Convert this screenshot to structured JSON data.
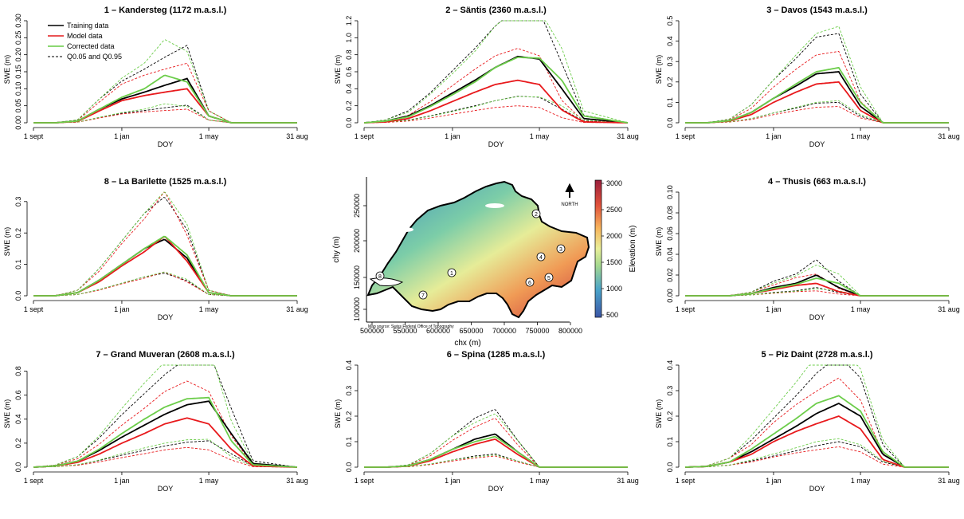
{
  "legend": {
    "entries": [
      {
        "label": "Training data",
        "color": "#000000",
        "style": "solid"
      },
      {
        "label": "Model data",
        "color": "#e31a1c",
        "style": "solid"
      },
      {
        "label": "Corrected data",
        "color": "#66cc44",
        "style": "solid"
      },
      {
        "label": "Q0.05 and Q0.95",
        "color": "#000000",
        "style": "dashed"
      }
    ]
  },
  "colors": {
    "training": "#000000",
    "model": "#e8191c",
    "corrected": "#6ccd4a"
  },
  "map": {
    "ylabel": "chy (m)",
    "xlabel": "chx (m)",
    "xticks": [
      "500000",
      "550000",
      "600000",
      "650000",
      "700000",
      "750000",
      "800000"
    ],
    "yticks": [
      "100000",
      "150000",
      "200000",
      "250000"
    ],
    "colorbar_label": "Elevation (m)",
    "colorbar_ticks": [
      "3000",
      "2500",
      "2000",
      "1500",
      "1000",
      "500"
    ],
    "north_label": "NORTH",
    "source_note": "Map source: Swiss Federal Office of Topography",
    "station_markers": [
      "1",
      "2",
      "3",
      "4",
      "5",
      "6",
      "7",
      "8"
    ]
  },
  "chart_data": [
    {
      "type": "line",
      "title": "1 – Kandersteg (1172 m.a.s.l.)",
      "xlabel": "DOY",
      "ylabel": "SWE (m)",
      "x_tick_labels": [
        "1 sept",
        "1 jan",
        "1 may",
        "31 aug"
      ],
      "y_ticks": [
        "0.00",
        "0.05",
        "0.10",
        "0.15",
        "0.20",
        "0.25",
        "0.30"
      ],
      "ylim": [
        0,
        0.3
      ],
      "show_legend": true,
      "series": [
        {
          "name": "Training data",
          "key": "training",
          "x": [
            "1 sept",
            "1 oct",
            "1 nov",
            "1 dec",
            "1 jan",
            "1 feb",
            "1 mar",
            "1 apr",
            "1 may",
            "1 jun",
            "1 jul",
            "31 aug"
          ],
          "values": [
            0,
            0,
            0.005,
            0.04,
            0.07,
            0.09,
            0.11,
            0.13,
            0.02,
            0,
            0,
            0
          ]
        },
        {
          "name": "Model data",
          "key": "model",
          "x": [
            "1 sept",
            "1 oct",
            "1 nov",
            "1 dec",
            "1 jan",
            "1 feb",
            "1 mar",
            "1 apr",
            "1 may",
            "1 jun",
            "1 jul",
            "31 aug"
          ],
          "values": [
            0,
            0,
            0.004,
            0.035,
            0.065,
            0.08,
            0.09,
            0.1,
            0.02,
            0,
            0,
            0
          ]
        },
        {
          "name": "Corrected data",
          "key": "corrected",
          "x": [
            "1 sept",
            "1 oct",
            "1 nov",
            "1 dec",
            "1 jan",
            "1 feb",
            "1 mar",
            "1 apr",
            "1 may",
            "1 jun",
            "1 jul",
            "31 aug"
          ],
          "values": [
            0,
            0,
            0.005,
            0.04,
            0.075,
            0.1,
            0.14,
            0.12,
            0.02,
            0,
            0,
            0
          ]
        }
      ]
    },
    {
      "type": "line",
      "title": "2 – Säntis (2360 m.a.s.l.)",
      "xlabel": "DOY",
      "ylabel": "SWE (m)",
      "x_tick_labels": [
        "1 sept",
        "1 jan",
        "1 may",
        "31 aug"
      ],
      "y_ticks": [
        "0.0",
        "0.2",
        "0.4",
        "0.6",
        "0.8",
        "1.0",
        "1.2"
      ],
      "ylim": [
        0,
        1.2
      ],
      "show_legend": false,
      "series": [
        {
          "name": "Training data",
          "key": "training",
          "x": [
            "1 sept",
            "1 oct",
            "1 nov",
            "1 dec",
            "1 jan",
            "1 feb",
            "1 mar",
            "1 apr",
            "1 may",
            "1 jun",
            "1 jul",
            "31 aug"
          ],
          "values": [
            0,
            0.02,
            0.08,
            0.2,
            0.35,
            0.5,
            0.65,
            0.78,
            0.75,
            0.4,
            0.05,
            0
          ]
        },
        {
          "name": "Model data",
          "key": "model",
          "x": [
            "1 sept",
            "1 oct",
            "1 nov",
            "1 dec",
            "1 jan",
            "1 feb",
            "1 mar",
            "1 apr",
            "1 may",
            "1 jun",
            "1 jul",
            "31 aug"
          ],
          "values": [
            0,
            0.01,
            0.05,
            0.14,
            0.25,
            0.36,
            0.45,
            0.5,
            0.45,
            0.15,
            0.01,
            0
          ]
        },
        {
          "name": "Corrected data",
          "key": "corrected",
          "x": [
            "1 sept",
            "1 oct",
            "1 nov",
            "1 dec",
            "1 jan",
            "1 feb",
            "1 mar",
            "1 apr",
            "1 may",
            "1 jun",
            "1 jul",
            "31 aug"
          ],
          "values": [
            0,
            0.02,
            0.07,
            0.19,
            0.33,
            0.48,
            0.65,
            0.77,
            0.76,
            0.5,
            0.08,
            0
          ]
        }
      ]
    },
    {
      "type": "line",
      "title": "3 – Davos (1543 m.a.s.l.)",
      "xlabel": "DOY",
      "ylabel": "SWE (m)",
      "x_tick_labels": [
        "1 sept",
        "1 jan",
        "1 may",
        "31 aug"
      ],
      "y_ticks": [
        "0.0",
        "0.1",
        "0.2",
        "0.3",
        "0.4",
        "0.5"
      ],
      "ylim": [
        0,
        0.5
      ],
      "show_legend": false,
      "series": [
        {
          "name": "Training data",
          "key": "training",
          "x": [
            "1 sept",
            "1 oct",
            "1 nov",
            "1 dec",
            "1 jan",
            "1 feb",
            "1 mar",
            "1 apr",
            "1 may",
            "1 jun",
            "1 jul",
            "31 aug"
          ],
          "values": [
            0,
            0,
            0.01,
            0.05,
            0.12,
            0.18,
            0.24,
            0.25,
            0.08,
            0,
            0,
            0
          ]
        },
        {
          "name": "Model data",
          "key": "model",
          "x": [
            "1 sept",
            "1 oct",
            "1 nov",
            "1 dec",
            "1 jan",
            "1 feb",
            "1 mar",
            "1 apr",
            "1 may",
            "1 jun",
            "1 jul",
            "31 aug"
          ],
          "values": [
            0,
            0,
            0.008,
            0.04,
            0.1,
            0.15,
            0.19,
            0.2,
            0.06,
            0,
            0,
            0
          ]
        },
        {
          "name": "Corrected data",
          "key": "corrected",
          "x": [
            "1 sept",
            "1 oct",
            "1 nov",
            "1 dec",
            "1 jan",
            "1 feb",
            "1 mar",
            "1 apr",
            "1 may",
            "1 jun",
            "1 jul",
            "31 aug"
          ],
          "values": [
            0,
            0,
            0.01,
            0.05,
            0.12,
            0.19,
            0.25,
            0.27,
            0.1,
            0,
            0,
            0
          ]
        }
      ]
    },
    {
      "type": "line",
      "title": "8 – La Barilette (1525 m.a.s.l.)",
      "xlabel": "DOY",
      "ylabel": "SWE (m)",
      "x_tick_labels": [
        "1 sept",
        "1 jan",
        "1 may",
        "31 aug"
      ],
      "y_ticks": [
        "0.0",
        "0.1",
        "0.2",
        "0.3"
      ],
      "ylim": [
        0,
        0.33
      ],
      "show_legend": false,
      "series": [
        {
          "name": "Training data",
          "key": "training",
          "x": [
            "1 sept",
            "1 oct",
            "1 nov",
            "1 dec",
            "1 jan",
            "1 feb",
            "1 mar",
            "1 apr",
            "1 may",
            "1 jun",
            "1 jul",
            "31 aug"
          ],
          "values": [
            0,
            0,
            0.01,
            0.05,
            0.1,
            0.15,
            0.18,
            0.12,
            0.01,
            0,
            0,
            0
          ]
        },
        {
          "name": "Model data",
          "key": "model",
          "x": [
            "1 sept",
            "1 oct",
            "1 nov",
            "1 dec",
            "1 jan",
            "1 feb",
            "1 mar",
            "1 apr",
            "1 may",
            "1 jun",
            "1 jul",
            "31 aug"
          ],
          "values": [
            0,
            0,
            0.01,
            0.045,
            0.095,
            0.14,
            0.19,
            0.11,
            0.01,
            0,
            0,
            0
          ]
        },
        {
          "name": "Corrected data",
          "key": "corrected",
          "x": [
            "1 sept",
            "1 oct",
            "1 nov",
            "1 dec",
            "1 jan",
            "1 feb",
            "1 mar",
            "1 apr",
            "1 may",
            "1 jun",
            "1 jul",
            "31 aug"
          ],
          "values": [
            0,
            0,
            0.01,
            0.05,
            0.1,
            0.15,
            0.19,
            0.13,
            0.01,
            0,
            0,
            0
          ]
        }
      ]
    },
    {
      "type": "line",
      "title": "4 – Thusis (663 m.a.s.l.)",
      "xlabel": "DOY",
      "ylabel": "SWE (m)",
      "x_tick_labels": [
        "1 sept",
        "1 jan",
        "1 may",
        "31 aug"
      ],
      "y_ticks": [
        "0.00",
        "0.02",
        "0.04",
        "0.06",
        "0.08",
        "0.10"
      ],
      "ylim": [
        0,
        0.1
      ],
      "show_legend": false,
      "series": [
        {
          "name": "Training data",
          "key": "training",
          "x": [
            "1 sept",
            "1 oct",
            "1 nov",
            "1 dec",
            "1 jan",
            "1 feb",
            "1 mar",
            "1 apr",
            "1 may",
            "1 jun",
            "1 jul",
            "31 aug"
          ],
          "values": [
            0,
            0,
            0,
            0.002,
            0.008,
            0.012,
            0.02,
            0.008,
            0,
            0,
            0,
            0
          ]
        },
        {
          "name": "Model data",
          "key": "model",
          "x": [
            "1 sept",
            "1 oct",
            "1 nov",
            "1 dec",
            "1 jan",
            "1 feb",
            "1 mar",
            "1 apr",
            "1 may",
            "1 jun",
            "1 jul",
            "31 aug"
          ],
          "values": [
            0,
            0,
            0,
            0.002,
            0.006,
            0.01,
            0.012,
            0.004,
            0,
            0,
            0,
            0
          ]
        },
        {
          "name": "Corrected data",
          "key": "corrected",
          "x": [
            "1 sept",
            "1 oct",
            "1 nov",
            "1 dec",
            "1 jan",
            "1 feb",
            "1 mar",
            "1 apr",
            "1 may",
            "1 jun",
            "1 jul",
            "31 aug"
          ],
          "values": [
            0,
            0,
            0,
            0.002,
            0.007,
            0.011,
            0.017,
            0.012,
            0,
            0,
            0,
            0
          ]
        }
      ]
    },
    {
      "type": "line",
      "title": "7 – Grand Muveran (2608 m.a.s.l.)",
      "xlabel": "DOY",
      "ylabel": "SWE (m)",
      "x_tick_labels": [
        "1 sept",
        "1 jan",
        "1 may",
        "31 aug"
      ],
      "y_ticks": [
        "0.0",
        "0.2",
        "0.4",
        "0.6",
        "0.8"
      ],
      "ylim": [
        0,
        0.85
      ],
      "show_legend": false,
      "series": [
        {
          "name": "Training data",
          "key": "training",
          "x": [
            "1 sept",
            "1 oct",
            "1 nov",
            "1 dec",
            "1 jan",
            "1 feb",
            "1 mar",
            "1 apr",
            "1 may",
            "1 jun",
            "1 jul",
            "31 aug"
          ],
          "values": [
            0,
            0.01,
            0.05,
            0.14,
            0.25,
            0.35,
            0.44,
            0.52,
            0.55,
            0.28,
            0.03,
            0
          ]
        },
        {
          "name": "Model data",
          "key": "model",
          "x": [
            "1 sept",
            "1 oct",
            "1 nov",
            "1 dec",
            "1 jan",
            "1 feb",
            "1 mar",
            "1 apr",
            "1 may",
            "1 jun",
            "1 jul",
            "31 aug"
          ],
          "values": [
            0,
            0.01,
            0.04,
            0.11,
            0.2,
            0.28,
            0.36,
            0.41,
            0.36,
            0.15,
            0.01,
            0
          ]
        },
        {
          "name": "Corrected data",
          "key": "corrected",
          "x": [
            "1 sept",
            "1 oct",
            "1 nov",
            "1 dec",
            "1 jan",
            "1 feb",
            "1 mar",
            "1 apr",
            "1 may",
            "1 jun",
            "1 jul",
            "31 aug"
          ],
          "values": [
            0,
            0.01,
            0.05,
            0.15,
            0.28,
            0.4,
            0.5,
            0.57,
            0.58,
            0.22,
            0.02,
            0
          ]
        }
      ]
    },
    {
      "type": "line",
      "title": "6 – Spina (1285 m.a.s.l.)",
      "xlabel": "DOY",
      "ylabel": "SWE (m)",
      "x_tick_labels": [
        "1 sept",
        "1 jan",
        "1 may",
        "31 aug"
      ],
      "y_ticks": [
        "0.0",
        "0.1",
        "0.2",
        "0.3",
        "0.4"
      ],
      "ylim": [
        0,
        0.4
      ],
      "show_legend": false,
      "series": [
        {
          "name": "Training data",
          "key": "training",
          "x": [
            "1 sept",
            "1 oct",
            "1 nov",
            "1 dec",
            "1 jan",
            "1 feb",
            "1 mar",
            "1 apr",
            "1 may",
            "1 jun",
            "1 jul",
            "31 aug"
          ],
          "values": [
            0,
            0,
            0.005,
            0.03,
            0.07,
            0.11,
            0.13,
            0.06,
            0,
            0,
            0,
            0
          ]
        },
        {
          "name": "Model data",
          "key": "model",
          "x": [
            "1 sept",
            "1 oct",
            "1 nov",
            "1 dec",
            "1 jan",
            "1 feb",
            "1 mar",
            "1 apr",
            "1 may",
            "1 jun",
            "1 jul",
            "31 aug"
          ],
          "values": [
            0,
            0,
            0.004,
            0.025,
            0.06,
            0.09,
            0.11,
            0.05,
            0,
            0,
            0,
            0
          ]
        },
        {
          "name": "Corrected data",
          "key": "corrected",
          "x": [
            "1 sept",
            "1 oct",
            "1 nov",
            "1 dec",
            "1 jan",
            "1 feb",
            "1 mar",
            "1 apr",
            "1 may",
            "1 jun",
            "1 jul",
            "31 aug"
          ],
          "values": [
            0,
            0,
            0.005,
            0.03,
            0.07,
            0.1,
            0.12,
            0.06,
            0,
            0,
            0,
            0
          ]
        }
      ]
    },
    {
      "type": "line",
      "title": "5 – Piz Daint (2728 m.a.s.l.)",
      "xlabel": "DOY",
      "ylabel": "SWE (m)",
      "x_tick_labels": [
        "1 sept",
        "1 jan",
        "1 may",
        "31 aug"
      ],
      "y_ticks": [
        "0.0",
        "0.1",
        "0.2",
        "0.3",
        "0.4"
      ],
      "ylim": [
        0,
        0.4
      ],
      "show_legend": false,
      "series": [
        {
          "name": "Training data",
          "key": "training",
          "x": [
            "1 sept",
            "1 oct",
            "1 nov",
            "1 dec",
            "1 jan",
            "1 feb",
            "1 mar",
            "1 apr",
            "1 may",
            "1 jun",
            "1 jul",
            "31 aug"
          ],
          "values": [
            0,
            0.003,
            0.02,
            0.06,
            0.11,
            0.16,
            0.21,
            0.25,
            0.2,
            0.05,
            0,
            0
          ]
        },
        {
          "name": "Model data",
          "key": "model",
          "x": [
            "1 sept",
            "1 oct",
            "1 nov",
            "1 dec",
            "1 jan",
            "1 feb",
            "1 mar",
            "1 apr",
            "1 may",
            "1 jun",
            "1 jul",
            "31 aug"
          ],
          "values": [
            0,
            0.003,
            0.02,
            0.05,
            0.1,
            0.14,
            0.17,
            0.2,
            0.15,
            0.03,
            0,
            0
          ]
        },
        {
          "name": "Corrected data",
          "key": "corrected",
          "x": [
            "1 sept",
            "1 oct",
            "1 nov",
            "1 dec",
            "1 jan",
            "1 feb",
            "1 mar",
            "1 apr",
            "1 may",
            "1 jun",
            "1 jul",
            "31 aug"
          ],
          "values": [
            0,
            0.003,
            0.02,
            0.07,
            0.13,
            0.19,
            0.25,
            0.28,
            0.22,
            0.06,
            0,
            0
          ]
        }
      ]
    }
  ]
}
